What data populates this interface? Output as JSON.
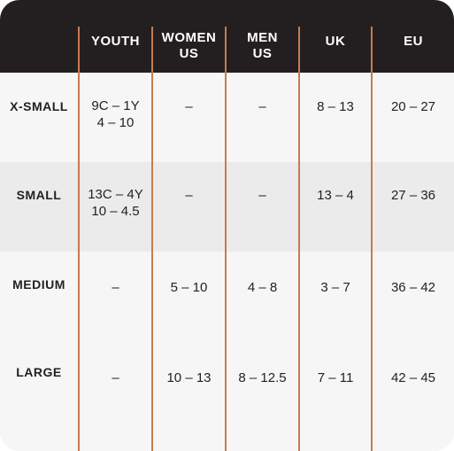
{
  "table": {
    "columns": [
      "YOUTH",
      "WOMEN\nUS",
      "MEN\nUS",
      "UK",
      "EU"
    ],
    "rows": [
      {
        "label": "X-SMALL",
        "youth": "9C – 1Y\n4 – 10",
        "women_us": "–",
        "men_us": "–",
        "uk": "8 – 13",
        "eu": "20 – 27"
      },
      {
        "label": "SMALL",
        "youth": "13C – 4Y\n10 – 4.5",
        "women_us": "–",
        "men_us": "–",
        "uk": "13 – 4",
        "eu": "27 – 36"
      },
      {
        "label": "MEDIUM",
        "youth": "–",
        "women_us": "5 – 10",
        "men_us": "4 – 8",
        "uk": "3 – 7",
        "eu": "36 – 42"
      },
      {
        "label": "LARGE",
        "youth": "–",
        "women_us": "10 – 13",
        "men_us": "8 – 12.5",
        "uk": "7 – 11",
        "eu": "42 – 45"
      }
    ]
  },
  "colors": {
    "header_bg": "#231f20",
    "divider": "#c97a4e",
    "row_light": "#f6f6f6",
    "row_grey": "#ebebeb",
    "text": "#231f20"
  }
}
